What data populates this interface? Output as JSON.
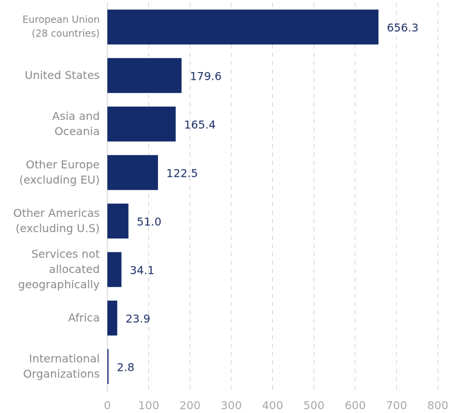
{
  "chart_data": {
    "type": "bar",
    "orientation": "horizontal",
    "categories": [
      "European Union\n(28 countries)",
      "United States",
      "Asia and\nOceania",
      "Other Europe\n(excluding EU)",
      "Other Americas\n(excluding U.S)",
      "Services not\nallocated\ngeographically",
      "Africa",
      "International\nOrganizations"
    ],
    "values": [
      656.3,
      179.6,
      165.4,
      122.5,
      51.0,
      34.1,
      23.9,
      2.8
    ],
    "value_labels": [
      "656.3",
      "179.6",
      "165.4",
      "122.5",
      "51.0",
      "34.1",
      "23.9",
      "2.8"
    ],
    "color": "#142c6b",
    "xlim": [
      0,
      800
    ],
    "xticks": [
      0,
      100,
      200,
      300,
      400,
      500,
      600,
      700,
      800
    ],
    "grid": true
  }
}
